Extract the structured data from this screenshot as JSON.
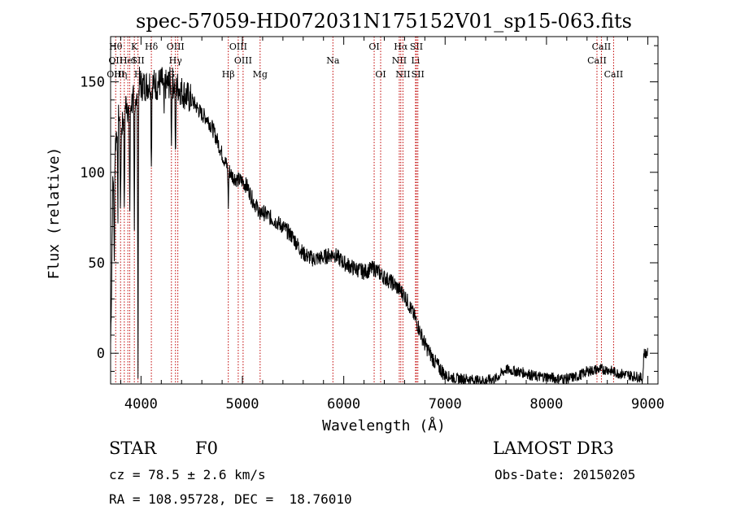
{
  "chart_data": {
    "type": "line",
    "title": "spec-57059-HD072031N175152V01_sp15-063.fits",
    "xlabel": "Wavelength (Å)",
    "ylabel": "Flux (relative)",
    "xlim": [
      3700,
      9100
    ],
    "ylim": [
      -17,
      175
    ],
    "x_ticks": [
      4000,
      5000,
      6000,
      7000,
      8000,
      9000
    ],
    "y_ticks": [
      0,
      50,
      100,
      150
    ],
    "series": [
      {
        "name": "flux",
        "anchors_x": [
          3700,
          3710,
          3720,
          3740,
          3760,
          3780,
          3800,
          3820,
          3840,
          3860,
          3880,
          3900,
          3920,
          3940,
          3960,
          3980,
          4000,
          4050,
          4100,
          4150,
          4200,
          4250,
          4300,
          4350,
          4400,
          4450,
          4500,
          4550,
          4600,
          4650,
          4700,
          4750,
          4800,
          4850,
          4900,
          4950,
          5000,
          5050,
          5100,
          5150,
          5200,
          5300,
          5400,
          5500,
          5600,
          5700,
          5800,
          5900,
          6000,
          6100,
          6200,
          6300,
          6400,
          6500,
          6600,
          6700,
          6800,
          6900,
          7000,
          7100,
          7200,
          7300,
          7400,
          7500,
          7600,
          7700,
          7800,
          7900,
          8000,
          8100,
          8200,
          8300,
          8400,
          8500,
          8600,
          8700,
          8800,
          8900,
          8950,
          8960,
          9000
        ],
        "anchors_y": [
          5,
          40,
          90,
          110,
          125,
          135,
          120,
          130,
          135,
          140,
          130,
          138,
          140,
          145,
          140,
          150,
          148,
          148,
          150,
          148,
          150,
          148,
          150,
          148,
          145,
          142,
          140,
          136,
          132,
          130,
          125,
          118,
          110,
          103,
          98,
          96,
          95,
          92,
          85,
          80,
          78,
          74,
          70,
          64,
          55,
          52,
          53,
          55,
          50,
          47,
          45,
          47,
          42,
          38,
          32,
          20,
          5,
          -5,
          -12,
          -14,
          -14,
          -15,
          -15,
          -14,
          -9,
          -10,
          -11,
          -13,
          -13,
          -14,
          -14,
          -13,
          -10,
          -9,
          -9,
          -11,
          -12,
          -13,
          -14,
          0,
          0
        ],
        "absorption_lines": [
          {
            "x": 3736,
            "depth": 58
          },
          {
            "x": 3771,
            "depth": 55
          },
          {
            "x": 3798,
            "depth": 45
          },
          {
            "x": 3835,
            "depth": 60
          },
          {
            "x": 3889,
            "depth": 55
          },
          {
            "x": 3934,
            "depth": 80
          },
          {
            "x": 3970,
            "depth": 150
          },
          {
            "x": 4102,
            "depth": 45
          },
          {
            "x": 4227,
            "depth": 18
          },
          {
            "x": 4300,
            "depth": 30
          },
          {
            "x": 4340,
            "depth": 45
          },
          {
            "x": 4861,
            "depth": 20
          },
          {
            "x": 5174,
            "depth": 8
          }
        ]
      }
    ],
    "line_markers": [
      {
        "x": 3750,
        "upper": "Hθ",
        "mid": "OII",
        "low": "OIII"
      },
      {
        "x": 3798,
        "upper": "",
        "mid": "",
        "low": "Hη"
      },
      {
        "x": 3835,
        "upper": "",
        "mid": "",
        "low": ""
      },
      {
        "x": 3870,
        "upper": "",
        "mid": "HeI",
        "low": ""
      },
      {
        "x": 3889,
        "upper": "",
        "mid": "",
        "low": ""
      },
      {
        "x": 3934,
        "upper": "K",
        "mid": "",
        "low": ""
      },
      {
        "x": 3970,
        "upper": "",
        "mid": "SII",
        "low": "H"
      },
      {
        "x": 4102,
        "upper": "Hδ",
        "mid": "",
        "low": ""
      },
      {
        "x": 4300,
        "upper": "",
        "mid": "",
        "low": "G"
      },
      {
        "x": 4340,
        "upper": "OIII",
        "mid": "Hγ",
        "low": ""
      },
      {
        "x": 4363,
        "upper": "",
        "mid": "",
        "low": ""
      },
      {
        "x": 4861,
        "upper": "",
        "mid": "",
        "low": "Hβ"
      },
      {
        "x": 4959,
        "upper": "OIII",
        "mid": "",
        "low": ""
      },
      {
        "x": 5007,
        "upper": "",
        "mid": "OIII",
        "low": ""
      },
      {
        "x": 5175,
        "upper": "",
        "mid": "",
        "low": "Mg"
      },
      {
        "x": 5893,
        "upper": "",
        "mid": "Na",
        "low": ""
      },
      {
        "x": 6300,
        "upper": "OI",
        "mid": "",
        "low": ""
      },
      {
        "x": 6364,
        "upper": "",
        "mid": "",
        "low": "OI"
      },
      {
        "x": 6548,
        "upper": "",
        "mid": "NII",
        "low": ""
      },
      {
        "x": 6563,
        "upper": "Hα",
        "mid": "",
        "low": ""
      },
      {
        "x": 6584,
        "upper": "",
        "mid": "",
        "low": "NII"
      },
      {
        "x": 6708,
        "upper": "",
        "mid": "Li",
        "low": ""
      },
      {
        "x": 6717,
        "upper": "SII",
        "mid": "",
        "low": ""
      },
      {
        "x": 6731,
        "upper": "",
        "mid": "",
        "low": "SII"
      },
      {
        "x": 8498,
        "upper": "",
        "mid": "CaII",
        "low": ""
      },
      {
        "x": 8542,
        "upper": "CaII",
        "mid": "",
        "low": ""
      },
      {
        "x": 8662,
        "upper": "",
        "mid": "",
        "low": "CaII"
      }
    ]
  },
  "info": {
    "object_type": "STAR",
    "subclass": "F0",
    "survey": "LAMOST DR3",
    "velocity": "cz = 78.5 ± 2.6 km/s",
    "obs_date": "Obs-Date: 20150205",
    "coords": "RA = 108.95728, DEC =  18.76010"
  }
}
